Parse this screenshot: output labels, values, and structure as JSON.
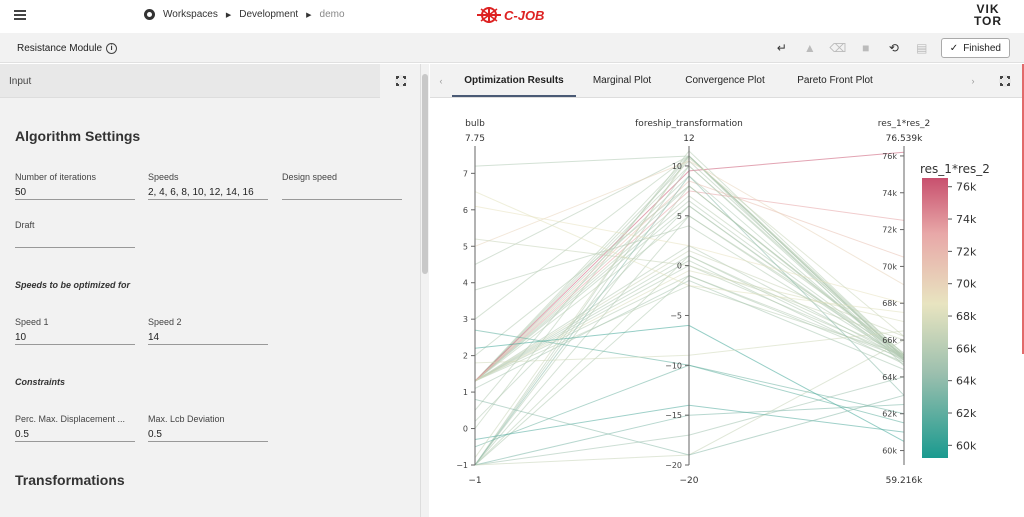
{
  "breadcrumb": {
    "workspaces": "Workspaces",
    "development": "Development",
    "current": "demo"
  },
  "brand": {
    "logo": "C-JOB",
    "logo_color": "#d22222",
    "viktor_top": "VIK",
    "viktor_bottom": "TOR"
  },
  "module": {
    "title": "Resistance Module",
    "info_icon": "info-icon"
  },
  "toolbar": {
    "finished_label": "Finished",
    "icons": [
      "enter-icon",
      "warning-icon",
      "clear-icon",
      "save-icon",
      "history-icon",
      "disk-icon"
    ]
  },
  "input_panel": {
    "header": "Input",
    "algorithm_title": "Algorithm Settings",
    "fields": [
      {
        "label": "Number of iterations",
        "value": "50"
      },
      {
        "label": "Speeds",
        "value": "2, 4, 6, 8, 10, 12, 14, 16"
      },
      {
        "label": "Design speed",
        "value": ""
      },
      {
        "label": "Draft",
        "value": ""
      }
    ],
    "speeds_subtitle": "Speeds to be optimized for",
    "speed_fields": [
      {
        "label": "Speed 1",
        "value": "10"
      },
      {
        "label": "Speed 2",
        "value": "14"
      }
    ],
    "constraints_subtitle": "Constraints",
    "constraint_fields": [
      {
        "label": "Perc. Max. Displacement ...",
        "value": "0.5"
      },
      {
        "label": "Max. Lcb Deviation",
        "value": "0.5"
      }
    ],
    "transformations_title": "Transformations"
  },
  "tabs": [
    {
      "label": "Optimization Results",
      "active": true
    },
    {
      "label": "Marginal Plot",
      "active": false
    },
    {
      "label": "Convergence Plot",
      "active": false
    },
    {
      "label": "Pareto Front Plot",
      "active": false
    }
  ],
  "chart_data": {
    "type": "parallel_coordinates",
    "dimensions": [
      {
        "name": "bulb",
        "range": [
          -1,
          7.75
        ],
        "max_label": "7.75",
        "min_label": "−1",
        "ticks": [
          -1,
          0,
          1,
          2,
          3,
          4,
          5,
          6,
          7
        ]
      },
      {
        "name": "foreship_transformation",
        "range": [
          -20,
          12
        ],
        "max_label": "12",
        "min_label": "−20",
        "ticks": [
          -20,
          -15,
          -10,
          -5,
          0,
          5,
          10
        ]
      },
      {
        "name": "res_1*res_2",
        "range": [
          59216,
          76539
        ],
        "max_label": "76.539k",
        "min_label": "59.216k",
        "ticks": [
          60000,
          62000,
          64000,
          66000,
          68000,
          70000,
          72000,
          74000,
          76000
        ],
        "tick_labels": [
          "60k",
          "62k",
          "64k",
          "66k",
          "68k",
          "70k",
          "72k",
          "74k",
          "76k"
        ]
      }
    ],
    "colorbar": {
      "title": "res_1*res_2",
      "ticks": [
        60000,
        62000,
        64000,
        66000,
        68000,
        70000,
        72000,
        74000,
        76000
      ],
      "tick_labels": [
        "60k",
        "62k",
        "64k",
        "66k",
        "68k",
        "70k",
        "72k",
        "74k",
        "76k"
      ],
      "colors": [
        "#1a9a8f",
        "#9bbfae",
        "#e8e4c0",
        "#e8a8a8",
        "#c8506e"
      ]
    },
    "lines": [
      [
        1.3,
        11,
        65200
      ],
      [
        1.3,
        10.5,
        65000
      ],
      [
        1.3,
        10,
        65100
      ],
      [
        1.3,
        9,
        64900
      ],
      [
        1.3,
        8,
        65000
      ],
      [
        1.3,
        7,
        65300
      ],
      [
        1.3,
        6.5,
        65000
      ],
      [
        1.3,
        6,
        64800
      ],
      [
        1.3,
        5,
        65200
      ],
      [
        1.3,
        2,
        65000
      ],
      [
        1.3,
        1,
        64900
      ],
      [
        1.3,
        0,
        65100
      ],
      [
        1.3,
        -1,
        65000
      ],
      [
        1.3,
        -2,
        65200
      ],
      [
        1.3,
        0.5,
        64700
      ],
      [
        1.3,
        9.5,
        76200
      ],
      [
        1.3,
        7.5,
        72500
      ],
      [
        1.3,
        8.5,
        70500
      ],
      [
        1.3,
        1.5,
        66200
      ],
      [
        1.3,
        -0.5,
        67000
      ],
      [
        -1,
        11,
        65000
      ],
      [
        -1,
        10,
        64900
      ],
      [
        -1,
        8,
        65100
      ],
      [
        -1,
        5,
        65000
      ],
      [
        -1,
        1,
        65200
      ],
      [
        -1,
        -1,
        64800
      ],
      [
        -1,
        -15,
        62500
      ],
      [
        -1,
        -17,
        64000
      ],
      [
        -1,
        -19,
        66000
      ],
      [
        -1,
        9,
        63000
      ],
      [
        0,
        11.5,
        65200
      ],
      [
        0.2,
        6,
        64900
      ],
      [
        -0.5,
        -10,
        62000
      ],
      [
        0.5,
        11,
        65000
      ],
      [
        2,
        8,
        65100
      ],
      [
        3,
        11,
        65100
      ],
      [
        4.5,
        11,
        65000
      ],
      [
        5,
        10.5,
        69000
      ],
      [
        5.2,
        0,
        66000
      ],
      [
        6.5,
        -2,
        67500
      ],
      [
        7.2,
        11,
        64600
      ],
      [
        2.2,
        -6,
        60500
      ],
      [
        2.7,
        -10,
        61500
      ],
      [
        -0.3,
        -14,
        61000
      ],
      [
        0.8,
        -19,
        63000
      ],
      [
        1.8,
        -9,
        66500
      ],
      [
        3.8,
        4,
        65000
      ],
      [
        6.1,
        2,
        68000
      ],
      [
        -0.8,
        10.8,
        66200
      ],
      [
        1.1,
        -1.5,
        64400
      ]
    ]
  }
}
